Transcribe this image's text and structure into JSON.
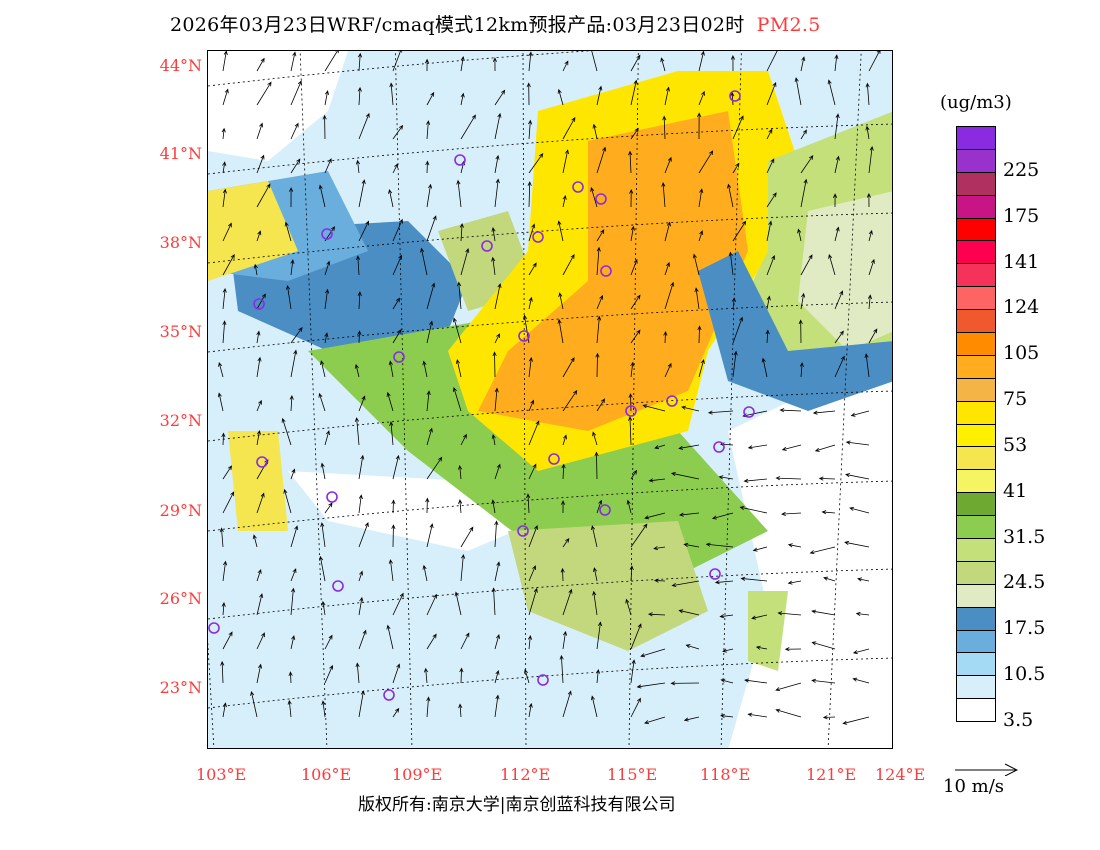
{
  "title": {
    "text": "2026年03月23日WRF/cmaq模式12km预报产品:03月23日02时",
    "pollutant": "PM2.5",
    "pollutant_color": "#ff3a3a"
  },
  "latitudes": [
    "44°N",
    "41°N",
    "38°N",
    "35°N",
    "32°N",
    "29°N",
    "26°N",
    "23°N"
  ],
  "longitudes": [
    "103°E",
    "106°E",
    "109°E",
    "112°E",
    "115°E",
    "118°E",
    "121°E",
    "124°E"
  ],
  "legend": {
    "unit": "(ug/m3)",
    "labels": [
      "225",
      "175",
      "141",
      "124",
      "105",
      "75",
      "53",
      "41",
      "31.5",
      "24.5",
      "17.5",
      "10.5",
      "3.5"
    ],
    "colors": [
      "#8a2be2",
      "#9932cc",
      "#b03060",
      "#c71585",
      "#ff0000",
      "#ff0050",
      "#f5325a",
      "#ff6464",
      "#f0582d",
      "#ff8c00",
      "#ffad1e",
      "#f5b446",
      "#ffe600",
      "#fff000",
      "#f5e650",
      "#f5f564",
      "#6ea932",
      "#8ccd50",
      "#c3e07a",
      "#c3d77d",
      "#e1ebc3",
      "#4a8ec4",
      "#6aaede",
      "#a5daf5",
      "#d7effa",
      "#ffffff"
    ]
  },
  "wind_reference": "10 m/s",
  "footer": "版权所有:南京大学|南京创蓝科技有限公司"
}
